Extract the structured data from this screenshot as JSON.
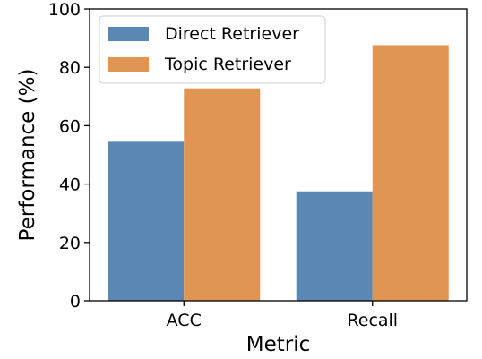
{
  "chart_data": {
    "type": "bar",
    "xlabel": "Metric",
    "ylabel": "Performance (%)",
    "categories": [
      "ACC",
      "Recall"
    ],
    "ylim": [
      0,
      100
    ],
    "yticks": [
      0,
      20,
      40,
      60,
      80,
      100
    ],
    "grid": false,
    "legend_position": "top-left",
    "series": [
      {
        "name": "Direct Retriever",
        "values": [
          54.5,
          37.5
        ],
        "color": "#5a87b3"
      },
      {
        "name": "Topic Retriever",
        "values": [
          72.8,
          87.6
        ],
        "color": "#e19552"
      }
    ]
  }
}
